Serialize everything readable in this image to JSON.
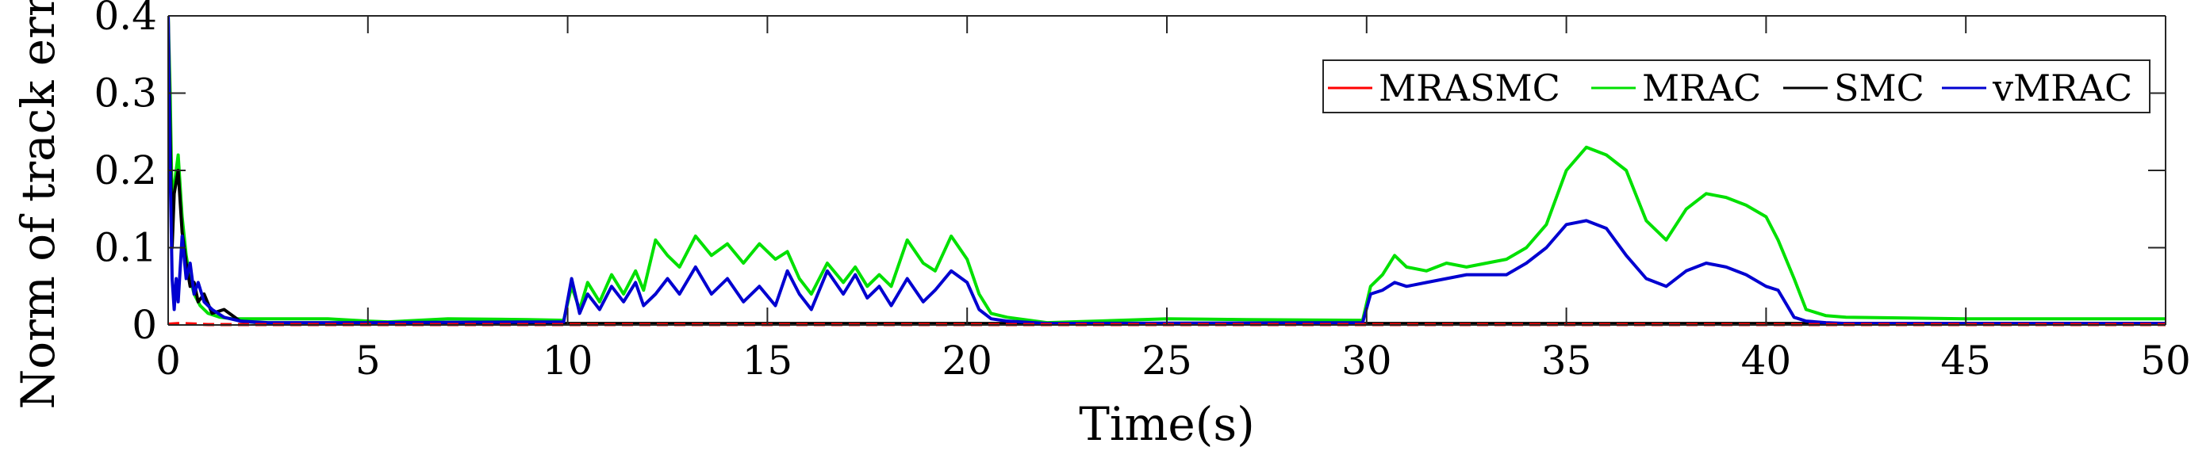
{
  "chart_data": {
    "type": "line",
    "title": "",
    "xlabel": "Time(s)",
    "ylabel": "Norm of track err",
    "xlim": [
      0,
      50
    ],
    "ylim": [
      0,
      0.4
    ],
    "x_ticks": [
      0,
      5,
      10,
      15,
      20,
      25,
      30,
      35,
      40,
      45,
      50
    ],
    "x_tick_labels": [
      "0",
      "5",
      "10",
      "15",
      "20",
      "25",
      "30",
      "35",
      "40",
      "45",
      "50"
    ],
    "y_ticks": [
      0,
      0.1,
      0.2,
      0.3,
      0.4
    ],
    "y_tick_labels": [
      "0",
      "0.1",
      "0.2",
      "0.3",
      "0.4"
    ],
    "grid": false,
    "legend_position": "top-right",
    "series": [
      {
        "name": "MRASMC",
        "color": "#ff0000",
        "x": [
          0,
          0.3,
          1,
          10,
          20,
          30,
          40,
          50
        ],
        "y": [
          0.001,
          0.002,
          0.0005,
          0.0005,
          0.0005,
          0.0005,
          0.0005,
          0.0005
        ]
      },
      {
        "name": "MRAC",
        "color": "#00e000",
        "x": [
          0,
          0.05,
          0.1,
          0.15,
          0.25,
          0.35,
          0.45,
          0.55,
          0.65,
          0.8,
          1.0,
          1.3,
          1.6,
          2,
          3,
          4,
          5,
          5.5,
          7,
          9,
          9.9,
          10.1,
          10.3,
          10.5,
          10.8,
          11.1,
          11.4,
          11.7,
          11.9,
          12.2,
          12.5,
          12.8,
          13.2,
          13.6,
          14.0,
          14.4,
          14.8,
          15.2,
          15.5,
          15.8,
          16.1,
          16.5,
          16.9,
          17.2,
          17.5,
          17.8,
          18.1,
          18.5,
          18.9,
          19.2,
          19.6,
          20.0,
          20.3,
          20.6,
          21.0,
          22,
          25,
          27,
          29.9,
          30.1,
          30.4,
          30.7,
          31,
          31.5,
          32,
          32.5,
          33,
          33.5,
          34,
          34.5,
          35,
          35.5,
          36,
          36.5,
          37,
          37.5,
          38,
          38.5,
          39,
          39.5,
          40,
          40.3,
          40.7,
          41,
          41.5,
          42,
          45,
          48,
          50
        ],
        "y": [
          0.4,
          0.3,
          0.15,
          0.18,
          0.22,
          0.14,
          0.09,
          0.06,
          0.04,
          0.025,
          0.015,
          0.01,
          0.008,
          0.008,
          0.008,
          0.008,
          0.005,
          0.004,
          0.008,
          0.007,
          0.006,
          0.05,
          0.02,
          0.055,
          0.03,
          0.065,
          0.04,
          0.07,
          0.045,
          0.11,
          0.09,
          0.075,
          0.115,
          0.09,
          0.105,
          0.08,
          0.105,
          0.085,
          0.095,
          0.06,
          0.04,
          0.08,
          0.055,
          0.075,
          0.05,
          0.065,
          0.05,
          0.11,
          0.08,
          0.07,
          0.115,
          0.085,
          0.04,
          0.015,
          0.01,
          0.003,
          0.008,
          0.007,
          0.006,
          0.05,
          0.065,
          0.09,
          0.075,
          0.07,
          0.08,
          0.075,
          0.08,
          0.085,
          0.1,
          0.13,
          0.2,
          0.23,
          0.22,
          0.2,
          0.135,
          0.11,
          0.15,
          0.17,
          0.165,
          0.155,
          0.14,
          0.11,
          0.06,
          0.02,
          0.012,
          0.01,
          0.008,
          0.008,
          0.008
        ]
      },
      {
        "name": "SMC",
        "color": "#000000",
        "x": [
          0,
          0.05,
          0.1,
          0.15,
          0.25,
          0.35,
          0.45,
          0.55,
          0.65,
          0.75,
          0.9,
          1.1,
          1.4,
          1.8,
          2.5,
          5,
          10,
          20,
          30,
          40,
          50
        ],
        "y": [
          0.4,
          0.25,
          0.1,
          0.17,
          0.2,
          0.12,
          0.08,
          0.05,
          0.055,
          0.03,
          0.04,
          0.015,
          0.02,
          0.005,
          0.002,
          0.002,
          0.002,
          0.002,
          0.002,
          0.002,
          0.002
        ]
      },
      {
        "name": "vMRAC",
        "color": "#0000d0",
        "x": [
          0,
          0.05,
          0.1,
          0.15,
          0.2,
          0.25,
          0.35,
          0.45,
          0.55,
          0.65,
          0.75,
          0.9,
          1.1,
          1.4,
          1.8,
          2.5,
          5,
          9.9,
          10.1,
          10.3,
          10.5,
          10.8,
          11.1,
          11.4,
          11.7,
          11.9,
          12.2,
          12.5,
          12.8,
          13.2,
          13.6,
          14.0,
          14.4,
          14.8,
          15.2,
          15.5,
          15.8,
          16.1,
          16.5,
          16.9,
          17.2,
          17.5,
          17.8,
          18.1,
          18.5,
          18.9,
          19.2,
          19.6,
          20.0,
          20.3,
          20.6,
          21.0,
          22,
          29.9,
          30.1,
          30.4,
          30.7,
          31,
          31.5,
          32,
          32.5,
          33,
          33.5,
          34,
          34.5,
          35,
          35.5,
          36,
          36.5,
          37,
          37.5,
          38,
          38.5,
          39,
          39.5,
          40,
          40.3,
          40.7,
          41,
          41.5,
          42,
          50
        ],
        "y": [
          0.4,
          0.2,
          0.06,
          0.02,
          0.06,
          0.03,
          0.115,
          0.06,
          0.08,
          0.04,
          0.055,
          0.03,
          0.02,
          0.01,
          0.005,
          0.003,
          0.003,
          0.004,
          0.06,
          0.015,
          0.04,
          0.02,
          0.05,
          0.03,
          0.055,
          0.025,
          0.04,
          0.06,
          0.04,
          0.075,
          0.04,
          0.06,
          0.03,
          0.05,
          0.025,
          0.07,
          0.04,
          0.02,
          0.07,
          0.04,
          0.065,
          0.035,
          0.05,
          0.025,
          0.06,
          0.03,
          0.045,
          0.07,
          0.055,
          0.02,
          0.008,
          0.005,
          0.002,
          0.003,
          0.04,
          0.045,
          0.055,
          0.05,
          0.055,
          0.06,
          0.065,
          0.065,
          0.065,
          0.08,
          0.1,
          0.13,
          0.135,
          0.125,
          0.09,
          0.06,
          0.05,
          0.07,
          0.08,
          0.075,
          0.065,
          0.05,
          0.045,
          0.01,
          0.005,
          0.003,
          0.002,
          0.002
        ]
      }
    ]
  }
}
